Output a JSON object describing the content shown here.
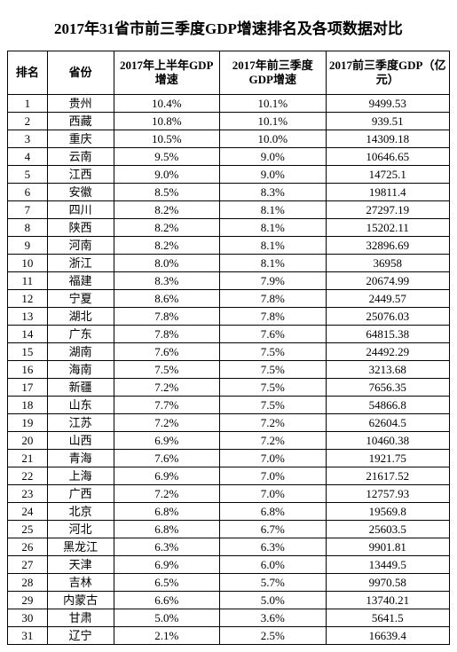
{
  "title": "2017年31省市前三季度GDP增速排名及各项数据对比",
  "headers": [
    "排名",
    "省份",
    "2017年上半年GDP增速",
    "2017年前三季度GDP增速",
    "2017前三季度GDP（亿元）"
  ],
  "rows": [
    [
      "1",
      "贵州",
      "10.4%",
      "10.1%",
      "9499.53"
    ],
    [
      "2",
      "西藏",
      "10.8%",
      "10.1%",
      "939.51"
    ],
    [
      "3",
      "重庆",
      "10.5%",
      "10.0%",
      "14309.18"
    ],
    [
      "4",
      "云南",
      "9.5%",
      "9.0%",
      "10646.65"
    ],
    [
      "5",
      "江西",
      "9.0%",
      "9.0%",
      "14725.1"
    ],
    [
      "6",
      "安徽",
      "8.5%",
      "8.3%",
      "19811.4"
    ],
    [
      "7",
      "四川",
      "8.2%",
      "8.1%",
      "27297.19"
    ],
    [
      "8",
      "陕西",
      "8.2%",
      "8.1%",
      "15202.11"
    ],
    [
      "9",
      "河南",
      "8.2%",
      "8.1%",
      "32896.69"
    ],
    [
      "10",
      "浙江",
      "8.0%",
      "8.1%",
      "36958"
    ],
    [
      "11",
      "福建",
      "8.3%",
      "7.9%",
      "20674.99"
    ],
    [
      "12",
      "宁夏",
      "8.6%",
      "7.8%",
      "2449.57"
    ],
    [
      "13",
      "湖北",
      "7.8%",
      "7.8%",
      "25076.03"
    ],
    [
      "14",
      "广东",
      "7.8%",
      "7.6%",
      "64815.38"
    ],
    [
      "15",
      "湖南",
      "7.6%",
      "7.5%",
      "24492.29"
    ],
    [
      "16",
      "海南",
      "7.5%",
      "7.5%",
      "3213.68"
    ],
    [
      "17",
      "新疆",
      "7.2%",
      "7.5%",
      "7656.35"
    ],
    [
      "18",
      "山东",
      "7.7%",
      "7.5%",
      "54866.8"
    ],
    [
      "19",
      "江苏",
      "7.2%",
      "7.2%",
      "62604.5"
    ],
    [
      "20",
      "山西",
      "6.9%",
      "7.2%",
      "10460.38"
    ],
    [
      "21",
      "青海",
      "7.6%",
      "7.0%",
      "1921.75"
    ],
    [
      "22",
      "上海",
      "6.9%",
      "7.0%",
      "21617.52"
    ],
    [
      "23",
      "广西",
      "7.2%",
      "7.0%",
      "12757.93"
    ],
    [
      "24",
      "北京",
      "6.8%",
      "6.8%",
      "19569.8"
    ],
    [
      "25",
      "河北",
      "6.8%",
      "6.7%",
      "25603.5"
    ],
    [
      "26",
      "黑龙江",
      "6.3%",
      "6.3%",
      "9901.81"
    ],
    [
      "27",
      "天津",
      "6.9%",
      "6.0%",
      "13449.5"
    ],
    [
      "28",
      "吉林",
      "6.5%",
      "5.7%",
      "9970.58"
    ],
    [
      "29",
      "内蒙古",
      "6.6%",
      "5.0%",
      "13740.21"
    ],
    [
      "30",
      "甘肃",
      "5.0%",
      "3.6%",
      "5641.5"
    ],
    [
      "31",
      "辽宁",
      "2.1%",
      "2.5%",
      "16639.4"
    ]
  ]
}
